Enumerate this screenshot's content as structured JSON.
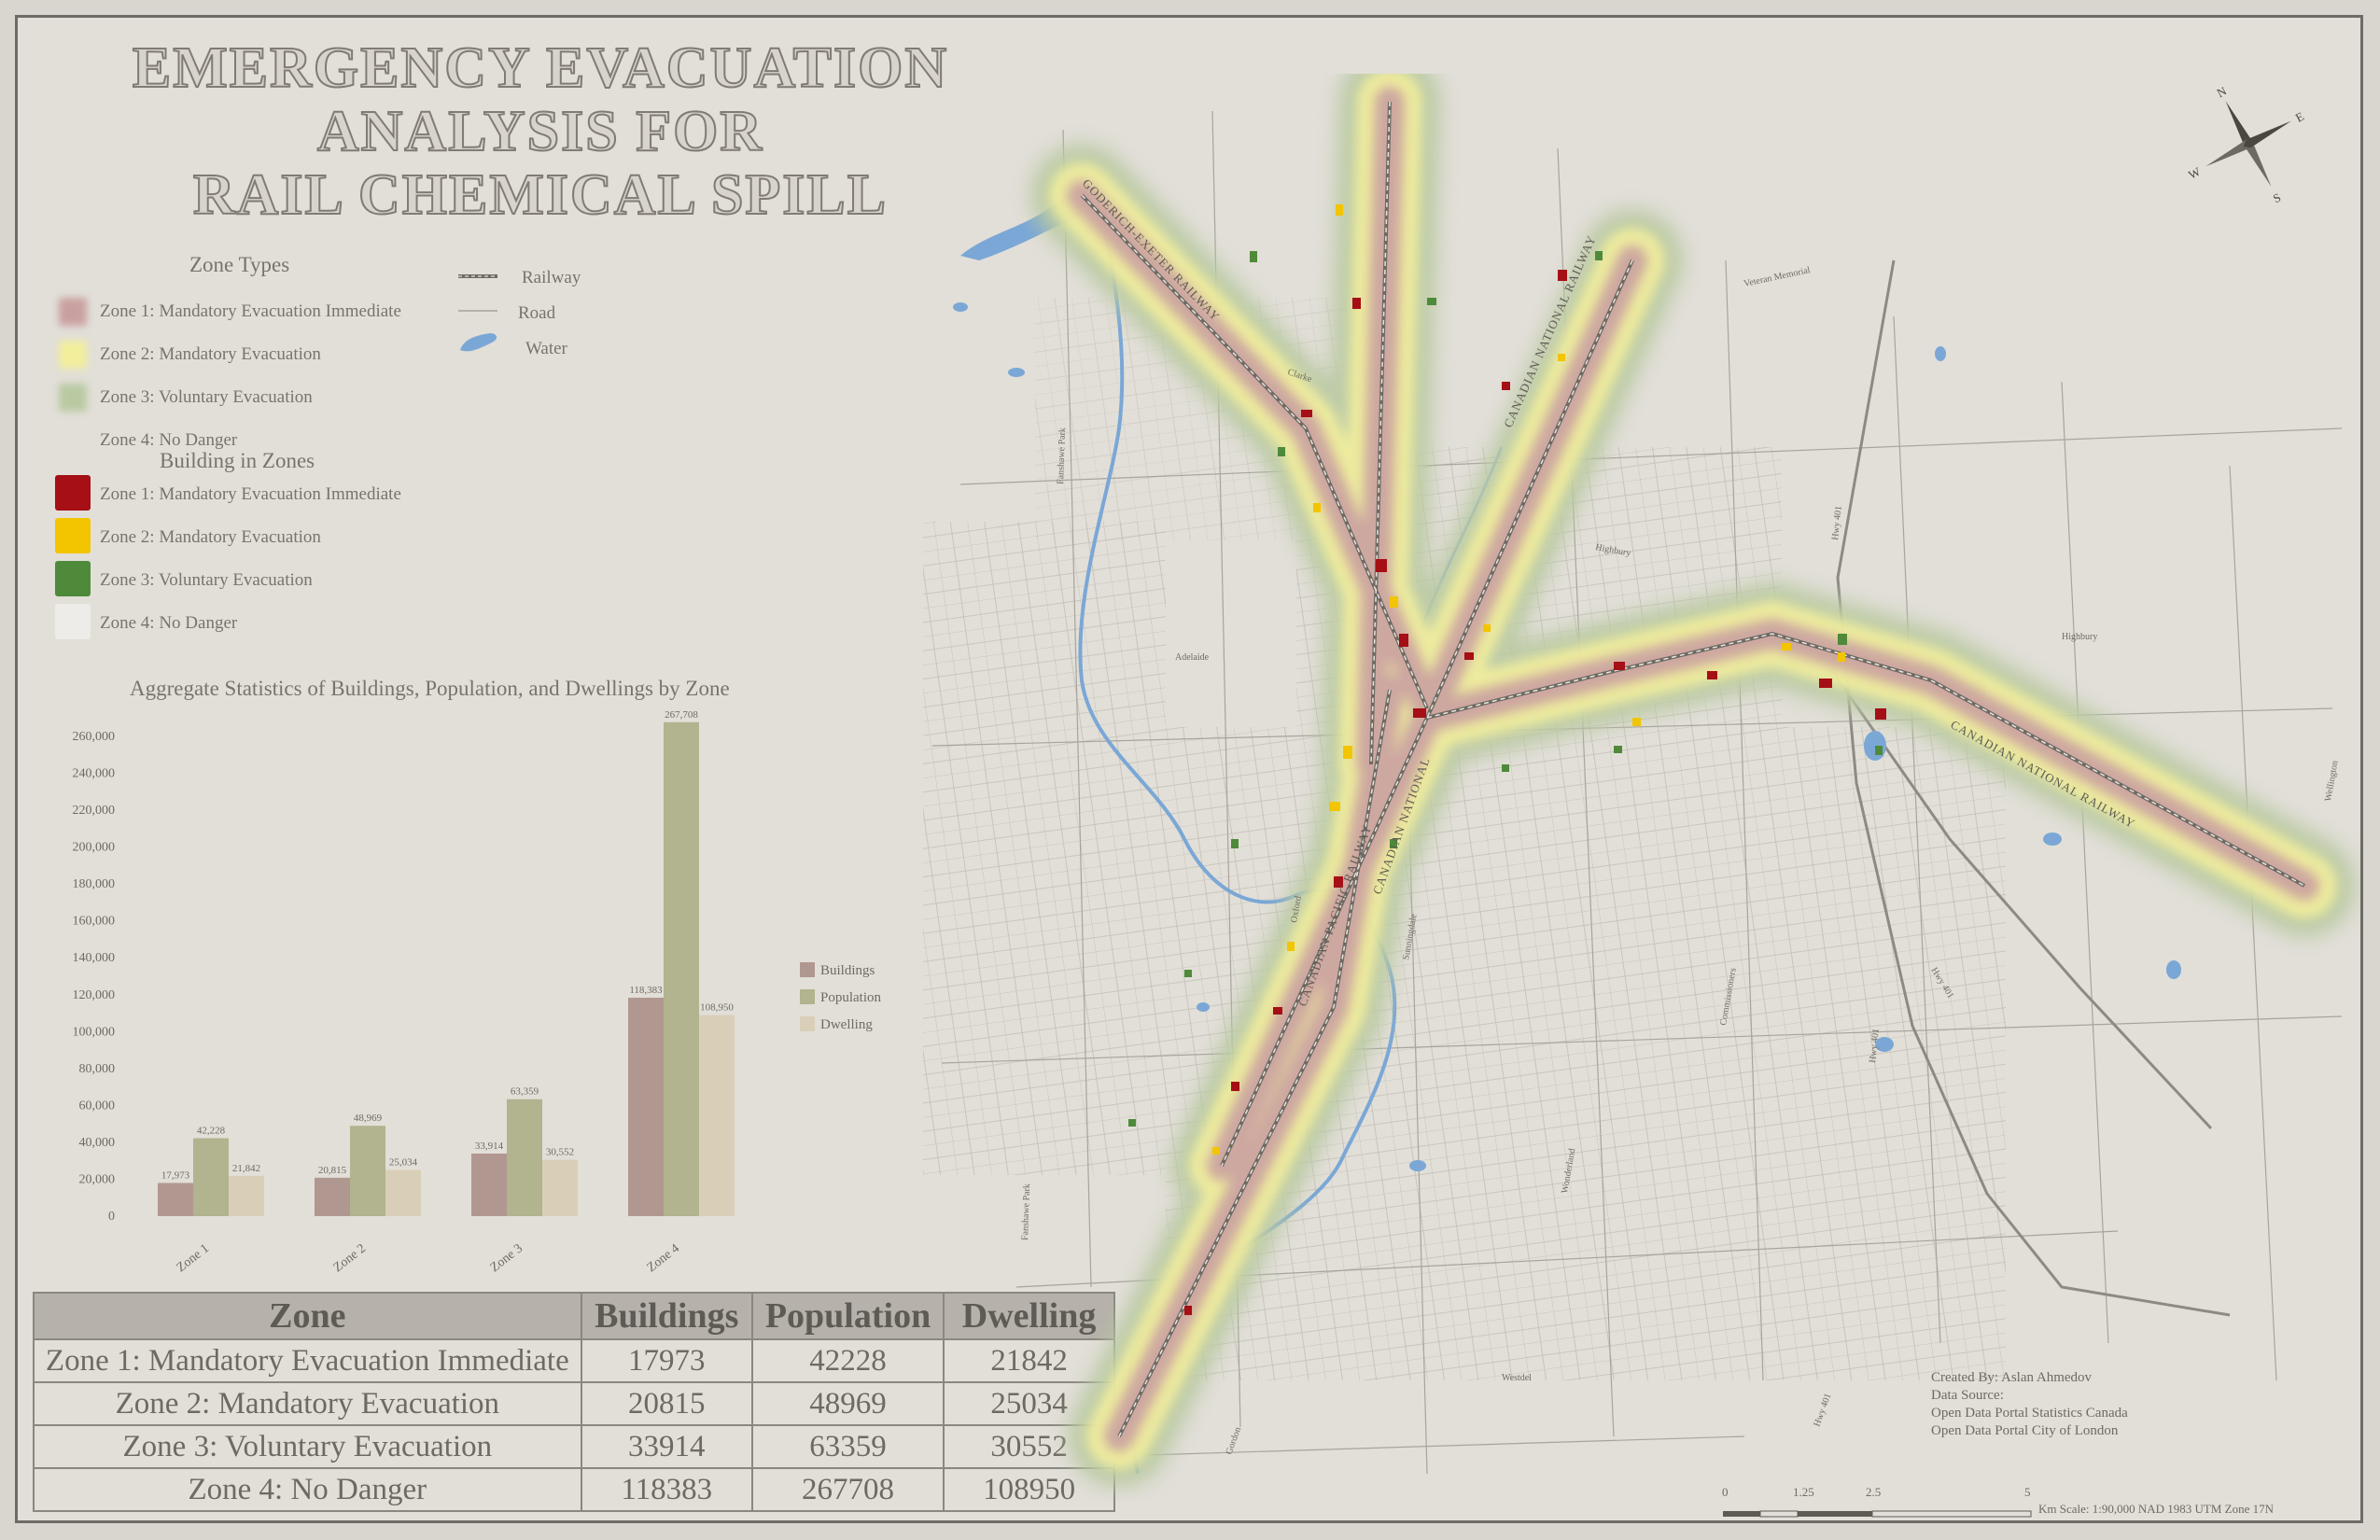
{
  "title_lines": [
    "EMERGENCY EVACUATION",
    "ANALYSIS FOR",
    "RAIL CHEMICAL SPILL"
  ],
  "legend": {
    "zone_types_title": "Zone Types",
    "zone_types": [
      {
        "label": "Zone 1: Mandatory Evacuation Immediate",
        "color": "#c9a0a0"
      },
      {
        "label": "Zone 2: Mandatory Evacuation",
        "color": "#f2ee9c"
      },
      {
        "label": "Zone 3: Voluntary Evacuation",
        "color": "#b9c9a2"
      },
      {
        "label": "Zone 4: No Danger",
        "color": "#e2dfd8"
      }
    ],
    "features": [
      {
        "label": "Railway",
        "icon": "railway-icon"
      },
      {
        "label": "Road",
        "icon": "road-icon"
      },
      {
        "label": "Water",
        "icon": "water-icon",
        "color": "#7aa7d6"
      }
    ],
    "buildings_title": "Building in Zones",
    "buildings": [
      {
        "label": "Zone 1: Mandatory Evacuation Immediate",
        "color": "#a50f15"
      },
      {
        "label": "Zone 2: Mandatory Evacuation",
        "color": "#f2c500"
      },
      {
        "label": "Zone 3: Voluntary Evacuation",
        "color": "#4e8a3a"
      },
      {
        "label": "Zone 4: No Danger",
        "color": "#eeece8"
      }
    ]
  },
  "chart_data": {
    "type": "bar",
    "title": "Aggregate Statistics of Buildings, Population, and Dwellings by Zone",
    "categories": [
      "Zone 1",
      "Zone 2",
      "Zone 3",
      "Zone 4"
    ],
    "series": [
      {
        "name": "Buildings",
        "values": [
          17973,
          20815,
          33914,
          118383
        ],
        "labels": [
          "17,973",
          "20,815",
          "33,914",
          "118,383"
        ],
        "color": "#b09890"
      },
      {
        "name": "Population",
        "values": [
          42228,
          48969,
          63359,
          267708
        ],
        "labels": [
          "42,228",
          "48,969",
          "63,359",
          "267,708"
        ],
        "color": "#b2b38f"
      },
      {
        "name": "Dwelling",
        "values": [
          21842,
          25034,
          30552,
          108950
        ],
        "labels": [
          "21,842",
          "25,034",
          "30,552",
          "108,950"
        ],
        "color": "#d9cfb8"
      }
    ],
    "yticks": [
      "0",
      "20,000",
      "40,000",
      "60,000",
      "80,000",
      "100,000",
      "120,000",
      "140,000",
      "160,000",
      "180,000",
      "200,000",
      "220,000",
      "240,000",
      "260,000"
    ],
    "ylim": [
      0,
      260000
    ],
    "legend_position": "right"
  },
  "table": {
    "headers": [
      "Zone",
      "Buildings",
      "Population",
      "Dwelling"
    ],
    "rows": [
      [
        "Zone 1: Mandatory Evacuation Immediate",
        "17973",
        "42228",
        "21842"
      ],
      [
        "Zone 2: Mandatory Evacuation",
        "20815",
        "48969",
        "25034"
      ],
      [
        "Zone 3: Voluntary Evacuation",
        "33914",
        "63359",
        "30552"
      ],
      [
        "Zone 4: No Danger",
        "118383",
        "267708",
        "108950"
      ]
    ]
  },
  "map_labels": {
    "railway_goderich": "GODERICH-EXETER RAILWAY",
    "railway_cn_north": "CANADIAN NATIONAL RAILWAY",
    "railway_cn_east": "CANADIAN NATIONAL RAILWAY",
    "railway_cp": "CANADIAN PACIFIC RAILWAY",
    "railway_cn_south": "CANADIAN NATIONAL",
    "roads": [
      "Veteran Memorial",
      "Clarke",
      "Fanshawe Park",
      "Adelaide",
      "Highbury",
      "Hwy 401",
      "Hwy 401",
      "Hwy 401",
      "Highbury",
      "Wellington",
      "Westdel",
      "Fanshawe Park",
      "Oxford",
      "Sunningdale",
      "Commissioners",
      "Hwy 401",
      "Gordon",
      "Wonderland"
    ]
  },
  "north_arrow": [
    "N",
    "E",
    "S",
    "W"
  ],
  "credits": [
    "Created By: Aslan Ahmedov",
    "Data Source:",
    "Open Data Portal Statistics Canada",
    "Open Data Portal City of London"
  ],
  "scale": {
    "ticks": [
      "0",
      "1.25",
      "2.5",
      "5"
    ],
    "unit": "Km",
    "text": "Scale: 1:90,000 NAD 1983 UTM Zone 17N"
  }
}
